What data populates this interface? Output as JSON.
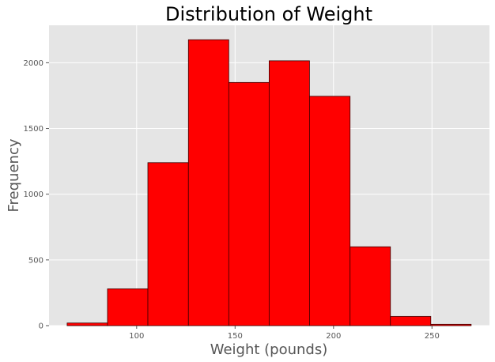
{
  "chart_data": {
    "type": "histogram",
    "title": "Distribution of Weight",
    "xlabel": "Weight (pounds)",
    "ylabel": "Frequency",
    "bins": [
      {
        "start": 64.7,
        "end": 85.2,
        "count": 20
      },
      {
        "start": 85.2,
        "end": 105.7,
        "count": 280
      },
      {
        "start": 105.7,
        "end": 126.3,
        "count": 1240
      },
      {
        "start": 126.3,
        "end": 146.8,
        "count": 2175
      },
      {
        "start": 146.8,
        "end": 167.3,
        "count": 1850
      },
      {
        "start": 167.3,
        "end": 187.8,
        "count": 2015
      },
      {
        "start": 187.8,
        "end": 208.4,
        "count": 1745
      },
      {
        "start": 208.4,
        "end": 228.9,
        "count": 600
      },
      {
        "start": 228.9,
        "end": 249.4,
        "count": 70
      },
      {
        "start": 249.4,
        "end": 269.9,
        "count": 10
      }
    ],
    "xlim": [
      55.5,
      279.2
    ],
    "ylim": [
      0,
      2285
    ],
    "xticks": [
      100,
      150,
      200,
      250
    ],
    "yticks": [
      0,
      500,
      1000,
      1500,
      2000
    ],
    "grid": true,
    "colors": {
      "bar": "#ff0000",
      "edge": "#3a0000",
      "plot_background": "#e5e5e5",
      "grid": "#ffffff"
    }
  }
}
